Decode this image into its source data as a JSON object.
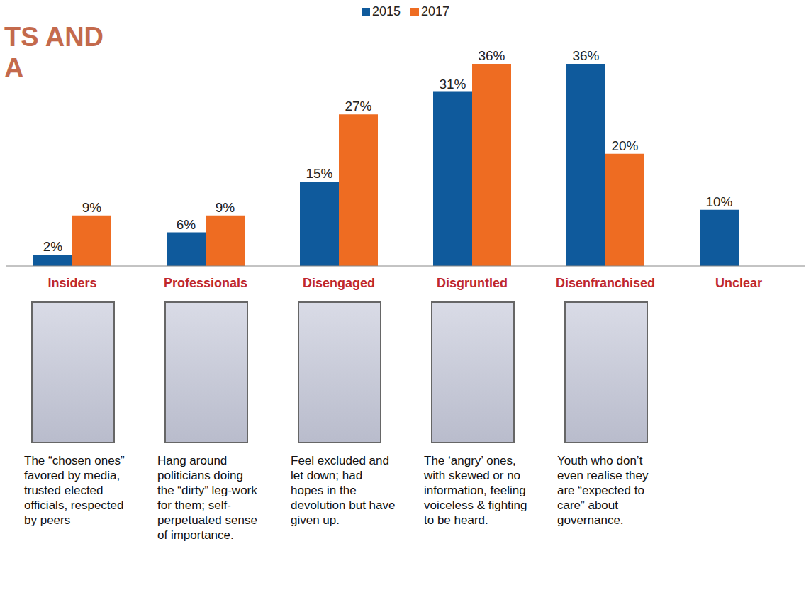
{
  "chart_data": {
    "type": "bar",
    "title": "TS AND\nA",
    "categories": [
      "Insiders",
      "Professionals",
      "Disengaged",
      "Disgruntled",
      "Disenfranchised",
      "Unclear"
    ],
    "series": [
      {
        "name": "2015",
        "color": "#0f5a9c",
        "values": [
          2,
          6,
          15,
          31,
          36,
          10
        ],
        "value_labels": [
          "2%",
          "6%",
          "15%",
          "31%",
          "36%",
          "10%"
        ]
      },
      {
        "name": "2017",
        "color": "#ee6c22",
        "values": [
          9,
          9,
          27,
          36,
          20,
          null
        ],
        "value_labels": [
          "9%",
          "9%",
          "27%",
          "36%",
          "20%",
          null
        ]
      }
    ],
    "descriptions": [
      "The “chosen ones” favored by media, trusted elected officials, respected by peers",
      "Hang around politicians doing the “dirty” leg-work for them; self-perpetuated sense of importance.",
      "Feel excluded and let down; had hopes in the devolution but have given up.",
      "The ‘angry’ ones, with skewed or no information, feeling voiceless & fighting to be heard.",
      "Youth who don’t even realise they are “expected to care” about governance.",
      null
    ],
    "ylim": [
      0,
      36
    ],
    "grid": false,
    "legend": "top",
    "data_labels": true,
    "tick_labels": "x"
  }
}
